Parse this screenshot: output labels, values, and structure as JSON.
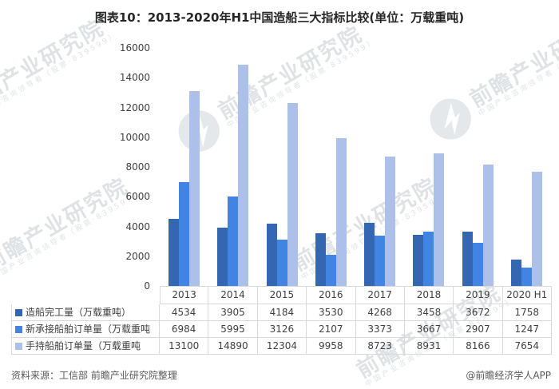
{
  "title": "图表10：2013-2020年H1中国造船三大指标比较(单位：万载重吨)",
  "chart_data": {
    "type": "bar",
    "categories": [
      "2013",
      "2014",
      "2015",
      "2016",
      "2017",
      "2018",
      "2019",
      "2020 H1"
    ],
    "series": [
      {
        "name": "造船完工量（万载重吨）",
        "color": "#3566B1",
        "values": [
          4534,
          3905,
          4184,
          3530,
          4268,
          3458,
          3672,
          1758
        ]
      },
      {
        "name": "新承接船舶订单量（万载重吨",
        "color": "#4284E1",
        "values": [
          6984,
          5995,
          3126,
          2107,
          3373,
          3667,
          2907,
          1247
        ]
      },
      {
        "name": "手持船舶订单量（万载重吨",
        "color": "#ACC0EA",
        "values": [
          13100,
          14890,
          12304,
          9958,
          8723,
          8931,
          8166,
          7654
        ]
      }
    ],
    "ylim": [
      0,
      16000
    ],
    "y_ticks": [
      0,
      2000,
      4000,
      6000,
      8000,
      10000,
      12000,
      14000,
      16000
    ],
    "grid": false,
    "legend_position": "table-left-column",
    "title": "图表10：2013-2020年H1中国造船三大指标比较(单位：万载重吨)",
    "xlabel": "",
    "ylabel": ""
  },
  "watermark": {
    "text": "前瞻产业研究院",
    "subtext": "中国产业咨询领导者（股票·839599）"
  },
  "footer": {
    "source": "资料来源：工信部 前瞻产业研究院整理",
    "credit": "@前瞻经济学人APP"
  }
}
